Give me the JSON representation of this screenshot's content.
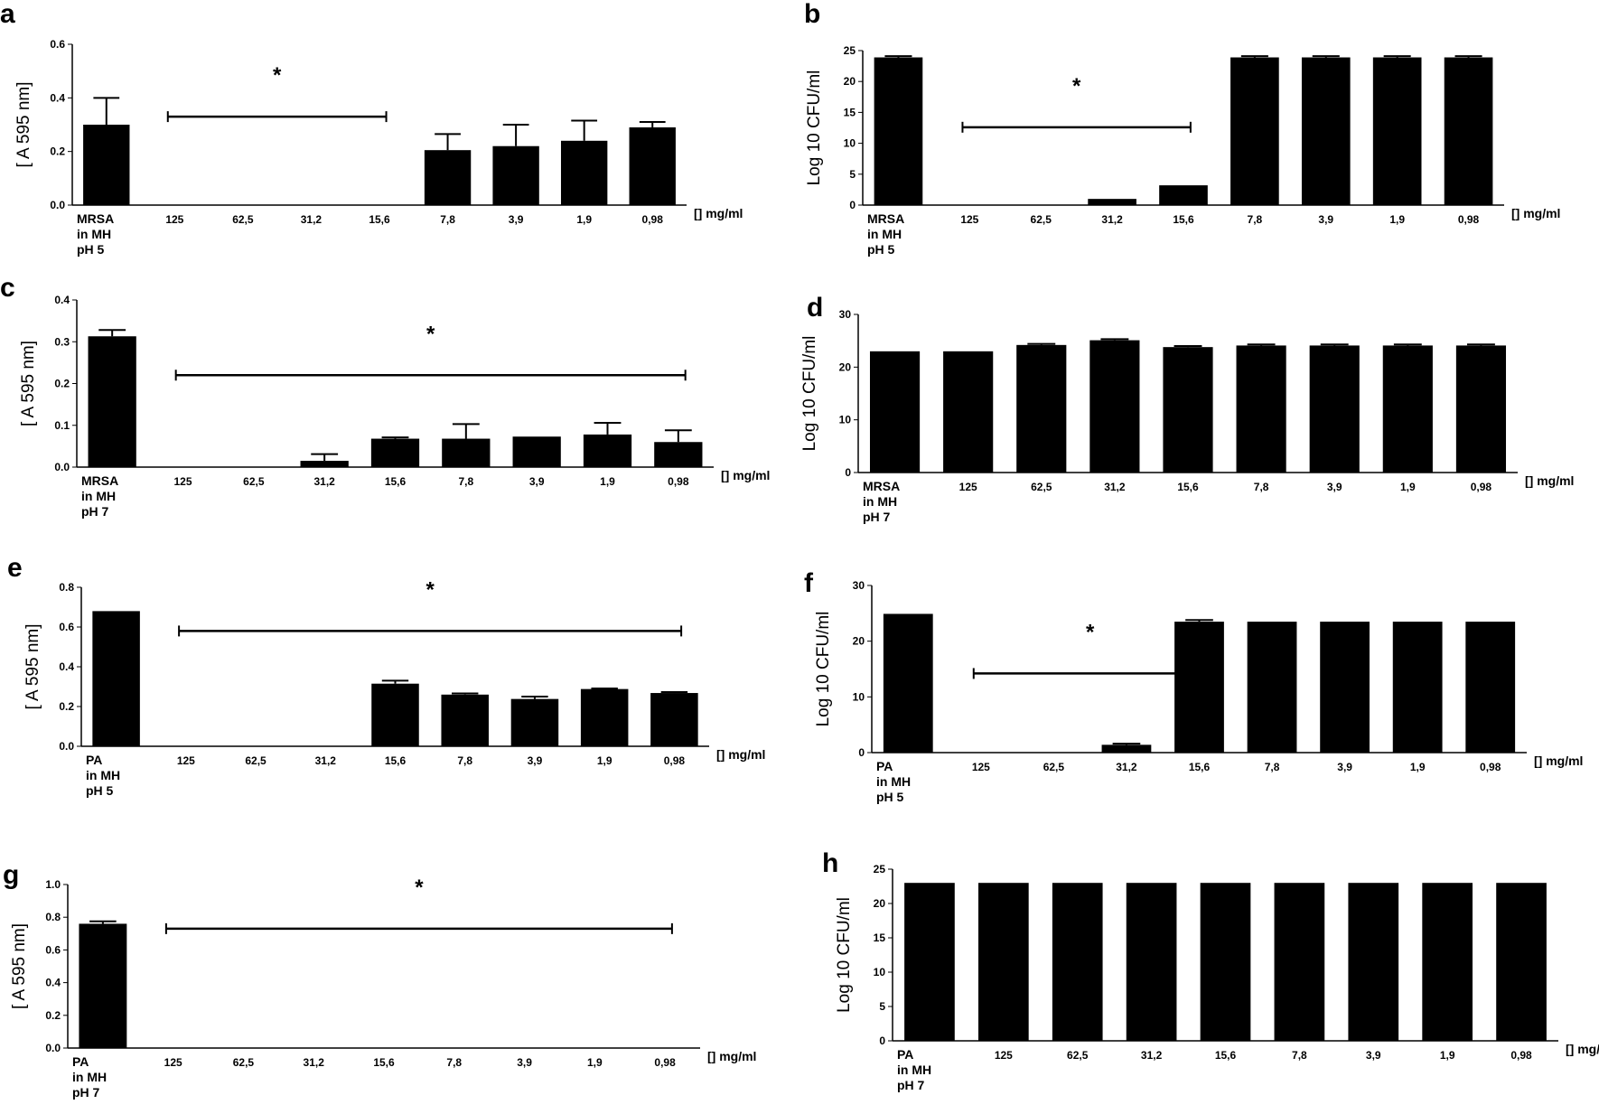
{
  "chart_data": [
    {
      "id": "a",
      "type": "bar",
      "panel_label": "a",
      "ylabel": "[ A 595 nm]",
      "ylim": [
        0,
        0.6
      ],
      "yticks": [
        "0.0",
        "0.2",
        "0.4",
        "0.6"
      ],
      "categories": [
        "MRSA",
        "125",
        "62,5",
        "31,2",
        "15,6",
        "7,8",
        "3,9",
        "1,9",
        "0,98"
      ],
      "first_category_lines": [
        "MRSA",
        "in MH",
        "pH 5"
      ],
      "unit_label": "[] mg/ml",
      "values": [
        0.3,
        0,
        0,
        0,
        0,
        0.205,
        0.22,
        0.24,
        0.29
      ],
      "errors": [
        0.1,
        0,
        0,
        0,
        0,
        0.06,
        0.08,
        0.075,
        0.02
      ],
      "significance": {
        "symbol": "*",
        "from_index": 1,
        "to_index": 4,
        "level": 0.33
      }
    },
    {
      "id": "b",
      "type": "bar",
      "panel_label": "b",
      "ylabel": "Log 10 CFU/ml",
      "ylim": [
        0,
        25
      ],
      "yticks": [
        "0",
        "5",
        "10",
        "15",
        "20",
        "25"
      ],
      "categories": [
        "MRSA",
        "125",
        "62,5",
        "31,2",
        "15,6",
        "7,8",
        "3,9",
        "1,9",
        "0,98"
      ],
      "first_category_lines": [
        "MRSA",
        "in MH",
        "pH 5"
      ],
      "unit_label": "[] mg/ml",
      "values": [
        23.9,
        0,
        0,
        1,
        3.2,
        23.9,
        23.9,
        23.9,
        23.9
      ],
      "errors": [
        0.2,
        0,
        0,
        0,
        0,
        0.2,
        0.2,
        0.2,
        0.2
      ],
      "significance": {
        "symbol": "*",
        "from_index": 1,
        "to_index": 4,
        "level": 12.6
      }
    },
    {
      "id": "c",
      "type": "bar",
      "panel_label": "c",
      "ylabel": "[ A 595 nm]",
      "ylim": [
        0,
        0.4
      ],
      "yticks": [
        "0.0",
        "0.1",
        "0.2",
        "0.3",
        "0.4"
      ],
      "categories": [
        "MRSA",
        "125",
        "62,5",
        "31,2",
        "15,6",
        "7,8",
        "3,9",
        "1,9",
        "0,98"
      ],
      "first_category_lines": [
        "MRSA",
        "in MH",
        "pH 7"
      ],
      "unit_label": "[] mg/ml",
      "values": [
        0.313,
        0,
        0,
        0.015,
        0.068,
        0.068,
        0.073,
        0.078,
        0.06
      ],
      "errors": [
        0.015,
        0,
        0,
        0.016,
        0.003,
        0.035,
        0,
        0.028,
        0.028
      ],
      "significance": {
        "symbol": "*",
        "from_index": 1,
        "to_index": 8,
        "level": 0.22
      }
    },
    {
      "id": "d",
      "type": "bar",
      "panel_label": "d",
      "ylabel": "Log 10 CFU/ml",
      "ylim": [
        0,
        30
      ],
      "yticks": [
        "0",
        "10",
        "20",
        "30"
      ],
      "categories": [
        "MRSA",
        "125",
        "62,5",
        "31,2",
        "15,6",
        "7,8",
        "3,9",
        "1,9",
        "0,98"
      ],
      "first_category_lines": [
        "MRSA",
        "in MH",
        "pH 7"
      ],
      "unit_label": "[] mg/ml",
      "values": [
        23,
        23,
        24.2,
        25.1,
        23.8,
        24.1,
        24.1,
        24.1,
        24.1
      ],
      "errors": [
        0,
        0,
        0.2,
        0.2,
        0.2,
        0.2,
        0.2,
        0.2,
        0.2
      ],
      "significance": null
    },
    {
      "id": "e",
      "type": "bar",
      "panel_label": "e",
      "ylabel": "[ A 595 nm]",
      "ylim": [
        0,
        0.8
      ],
      "yticks": [
        "0.0",
        "0.2",
        "0.4",
        "0.6",
        "0.8"
      ],
      "categories": [
        "PA",
        "125",
        "62,5",
        "31,2",
        "15,6",
        "7,8",
        "3,9",
        "1,9",
        "0,98"
      ],
      "first_category_lines": [
        "PA",
        "in MH",
        "pH 5"
      ],
      "unit_label": "[] mg/ml",
      "values": [
        0.68,
        0,
        0,
        0,
        0.315,
        0.26,
        0.238,
        0.288,
        0.268
      ],
      "errors": [
        0,
        0,
        0,
        0,
        0.015,
        0.006,
        0.012,
        0.003,
        0.005
      ],
      "significance": {
        "symbol": "*",
        "from_index": 1,
        "to_index": 8,
        "level": 0.58
      }
    },
    {
      "id": "f",
      "type": "bar",
      "panel_label": "f",
      "ylabel": "Log 10 CFU/ml",
      "ylim": [
        0,
        30
      ],
      "yticks": [
        "0",
        "10",
        "20",
        "30"
      ],
      "categories": [
        "PA",
        "125",
        "62,5",
        "31,2",
        "15,6",
        "7,8",
        "3,9",
        "1,9",
        "0,98"
      ],
      "first_category_lines": [
        "PA",
        "in MH",
        "pH 5"
      ],
      "unit_label": "[] mg/ml",
      "values": [
        24.9,
        0,
        0,
        1.4,
        23.5,
        23.5,
        23.5,
        23.5,
        23.5
      ],
      "errors": [
        0,
        0,
        0,
        0.2,
        0.3,
        0,
        0,
        0,
        0
      ],
      "significance": {
        "symbol": "*",
        "from_index": 1,
        "to_index": 4,
        "level": 14.2
      }
    },
    {
      "id": "g",
      "type": "bar",
      "panel_label": "g",
      "ylabel": "[ A 595 nm]",
      "ylim": [
        0,
        1.0
      ],
      "yticks": [
        "0.0",
        "0.2",
        "0.4",
        "0.6",
        "0.8",
        "1.0"
      ],
      "categories": [
        "PA",
        "125",
        "62,5",
        "31,2",
        "15,6",
        "7,8",
        "3,9",
        "1,9",
        "0,98"
      ],
      "first_category_lines": [
        "PA",
        "in MH",
        "pH 7"
      ],
      "unit_label": "[] mg/ml",
      "values": [
        0.76,
        0,
        0,
        0,
        0,
        0,
        0,
        0,
        0
      ],
      "errors": [
        0.015,
        0,
        0,
        0,
        0,
        0,
        0,
        0,
        0
      ],
      "significance": {
        "symbol": "*",
        "from_index": 1,
        "to_index": 8,
        "level": 0.73
      }
    },
    {
      "id": "h",
      "type": "bar",
      "panel_label": "h",
      "ylabel": "Log 10 CFU/ml",
      "ylim": [
        0,
        25
      ],
      "yticks": [
        "0",
        "5",
        "10",
        "15",
        "20",
        "25"
      ],
      "categories": [
        "PA",
        "125",
        "62,5",
        "31,2",
        "15,6",
        "7,8",
        "3,9",
        "1,9",
        "0,98"
      ],
      "first_category_lines": [
        "PA",
        "in MH",
        "pH 7"
      ],
      "unit_label": "[] mg/ml",
      "values": [
        23,
        23,
        23,
        23,
        23,
        23,
        23,
        23,
        23
      ],
      "errors": [
        0,
        0,
        0,
        0,
        0,
        0,
        0,
        0,
        0
      ],
      "significance": null
    }
  ]
}
